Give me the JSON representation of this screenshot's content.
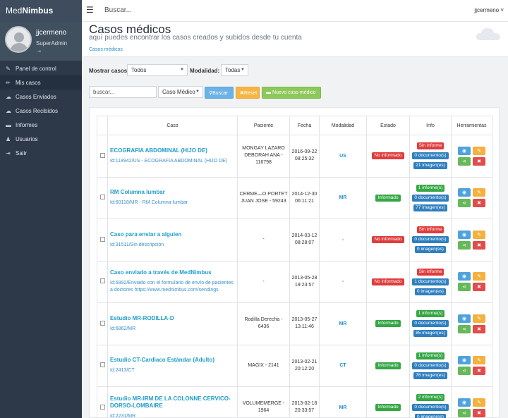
{
  "brand": {
    "part1": "Med",
    "part2": "Nimbus"
  },
  "profile": {
    "name": "jjcermeno",
    "role": "SuperAdmin"
  },
  "nav": [
    {
      "label": "Panel de control",
      "icon": "wrench-icon",
      "glyph": "✎"
    },
    {
      "label": "Mis casos",
      "icon": "pencil-icon",
      "glyph": "✏",
      "active": true
    },
    {
      "label": "Casos Enviados",
      "icon": "cloud-upload-icon",
      "glyph": "☁"
    },
    {
      "label": "Casos Recibidos",
      "icon": "cloud-download-icon",
      "glyph": "☁"
    },
    {
      "label": "Informes",
      "icon": "folder-icon",
      "glyph": "▬"
    },
    {
      "label": "Usuarios",
      "icon": "users-icon",
      "glyph": "♟"
    },
    {
      "label": "Salir",
      "icon": "logout-icon",
      "glyph": "⇥"
    }
  ],
  "topbar": {
    "search_placeholder": "Buscar...",
    "user": "jjcermeno ˅"
  },
  "header": {
    "title": "Casos médicos",
    "subtitle": "aquí puedes encontrar los casos creados y subidos desde tu cuenta",
    "breadcrumb": "Casos médicos"
  },
  "filters": {
    "show_label": "Mostrar casos:",
    "show_value": "Todos",
    "modality_label": "Modalidad:",
    "modality_value": "Todas",
    "search_placeholder": "buscar...",
    "type_value": "Caso Médico",
    "search_btn": "Buscar",
    "reset_btn": "Reset",
    "new_btn": "Nuevo caso médico"
  },
  "table": {
    "headers": [
      "Caso",
      "Paciente",
      "Fecha",
      "Modalidad",
      "Estado",
      "Info",
      "Herramientas"
    ],
    "rows": [
      {
        "title": "ECOGRAFIA ABDOMINAL (HIJO DE)",
        "desc": "Id:118942/US - ECOGRAFIA ABDOMINAL (HIJO DE)",
        "patient": "MONGAY LAZARO DEBORAH ANA - 116798",
        "date": "2016-09-22 08:25:32",
        "modality": "US",
        "status": "No informado",
        "status_color": "red",
        "info": [
          {
            "text": "Sin informe",
            "color": "red"
          },
          {
            "text": "0 documento(s)",
            "color": "blue"
          },
          {
            "text": "21 imagen(es)",
            "color": "blue"
          }
        ]
      },
      {
        "title": "RM Columna lumbar",
        "desc": "Id:60118/MR - RM Columna lumbar",
        "patient": "CERME—O PORTET JUAN JOSE - 59243",
        "date": "2014-12-30 06:11:21",
        "modality": "MR",
        "status": "Informado",
        "status_color": "green",
        "info": [
          {
            "text": "1 informe(s)",
            "color": "green"
          },
          {
            "text": "0 documento(s)",
            "color": "blue"
          },
          {
            "text": "77 imagen(es)",
            "color": "blue"
          }
        ]
      },
      {
        "title": "Caso para enviar a alguien",
        "desc": "Id:31511/Sin descripción",
        "patient": "-",
        "date": "2014-03-12 08:28:07",
        "modality": "-",
        "status": "No informado",
        "status_color": "red",
        "info": [
          {
            "text": "Sin informe",
            "color": "red"
          },
          {
            "text": "0 documento(s)",
            "color": "blue"
          },
          {
            "text": "0 imagen(es)",
            "color": "blue"
          }
        ]
      },
      {
        "title": "Caso enviado a través de MedNimbus",
        "desc": "Id:6992/Enviado con el formulario de envío de pacientes a doctores https://www.mednimbus.com/sendings",
        "patient": "-",
        "date": "2013-05-28 19:23:57",
        "modality": "-",
        "status": "No informado",
        "status_color": "red",
        "info": [
          {
            "text": "Sin informe",
            "color": "red"
          },
          {
            "text": "1 documento(s)",
            "color": "blue"
          },
          {
            "text": "0 imagen(es)",
            "color": "blue"
          }
        ]
      },
      {
        "title": "Estudio MR-RODILLA-D",
        "desc": "Id:6862/MR",
        "patient": "Rodilla Derecha - 6436",
        "date": "2013-05-27 13:11:46",
        "modality": "MR",
        "status": "Informado",
        "status_color": "green",
        "info": [
          {
            "text": "1 informe(s)",
            "color": "green"
          },
          {
            "text": "0 documento(s)",
            "color": "blue"
          },
          {
            "text": "85 imagen(es)",
            "color": "blue"
          }
        ]
      },
      {
        "title": "Estudio CT-Cardiaco Estándar (Adulto)",
        "desc": "Id:2413/CT",
        "patient": "MAGIX - 2141",
        "date": "2013-02-21 20:12:20",
        "modality": "CT",
        "status": "Informado",
        "status_color": "green",
        "info": [
          {
            "text": "1 informe(s)",
            "color": "green"
          },
          {
            "text": "0 documento(s)",
            "color": "blue"
          },
          {
            "text": "76 imagen(es)",
            "color": "blue"
          }
        ]
      },
      {
        "title": "Estudio MR-IRM DE LA COLONNE CERVICO-DORSO-LOMBAIRE",
        "desc": "Id:2231/MR",
        "patient": "VOLUMEMERGE - 1964",
        "date": "2013-02-18 20:33:57",
        "modality": "MR",
        "status": "Informado",
        "status_color": "green",
        "info": [
          {
            "text": "2 informe(s)",
            "color": "green"
          },
          {
            "text": "0 documento(s)",
            "color": "blue"
          },
          {
            "text": "0 imagen(es)",
            "color": "blue"
          }
        ]
      }
    ]
  }
}
